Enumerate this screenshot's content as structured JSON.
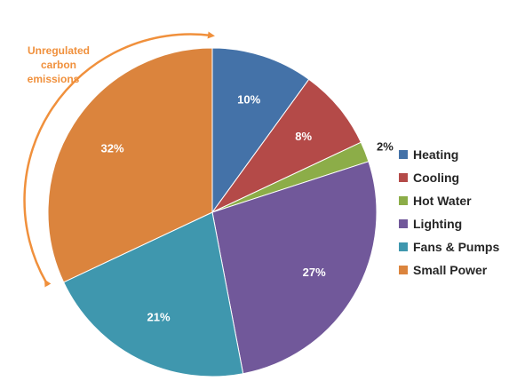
{
  "chart_data": {
    "type": "pie",
    "title": "",
    "categories": [
      "Heating",
      "Cooling",
      "Hot Water",
      "Lighting",
      "Fans & Pumps",
      "Small Power"
    ],
    "values": [
      10,
      8,
      2,
      27,
      21,
      32
    ],
    "value_labels": [
      "10%",
      "8%",
      "2%",
      "27%",
      "21%",
      "32%"
    ],
    "colors": [
      "#4472A8",
      "#B44A48",
      "#8CAD48",
      "#71589A",
      "#3F97AE",
      "#DB843D"
    ],
    "legend_position": "right",
    "start_angle": "12 o'clock",
    "direction": "clockwise",
    "annotation": {
      "lines": [
        "Unregulated",
        "carbon",
        "emissions"
      ],
      "color": "#F0903C",
      "applies_to": [
        "Small Power"
      ]
    }
  }
}
